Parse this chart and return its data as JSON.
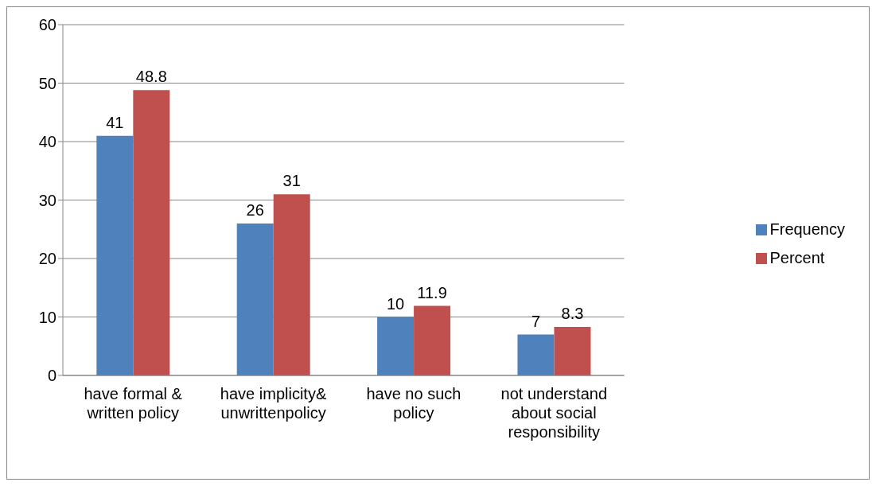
{
  "chart_data": {
    "type": "bar",
    "categories": [
      "have formal &\nwritten policy",
      "have implicity&\nunwrittenpolicy",
      "have no such\npolicy",
      "not understand\nabout social\nresponsibility"
    ],
    "series": [
      {
        "name": "Frequency",
        "color": "#4f81bd",
        "values": [
          41,
          26,
          10,
          7
        ]
      },
      {
        "name": "Percent",
        "color": "#c0504d",
        "values": [
          48.8,
          31,
          11.9,
          8.3
        ]
      }
    ],
    "ylim": [
      0,
      60
    ],
    "yticks": [
      0,
      10,
      20,
      30,
      40,
      50,
      60
    ],
    "grid": "y",
    "legend": "right",
    "data_labels": true
  }
}
